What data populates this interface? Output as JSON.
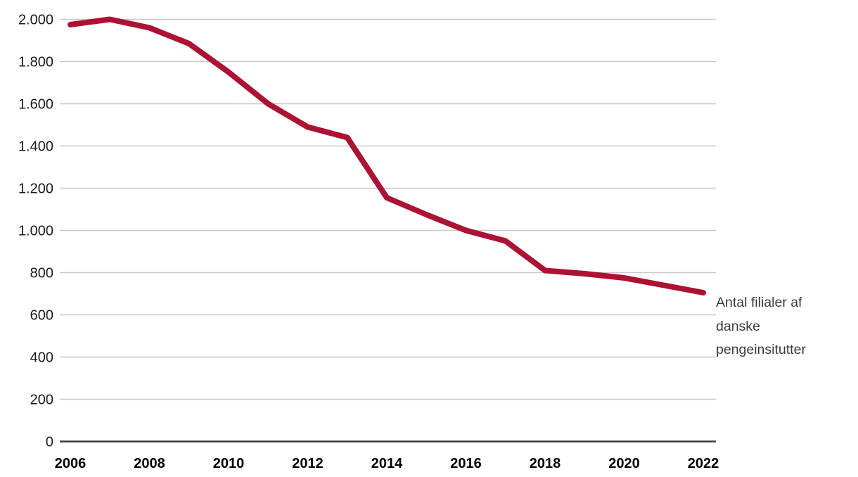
{
  "chart_data": {
    "type": "line",
    "title": "",
    "xlabel": "",
    "ylabel": "",
    "x": [
      2006,
      2007,
      2008,
      2009,
      2010,
      2011,
      2012,
      2013,
      2014,
      2015,
      2016,
      2017,
      2018,
      2019,
      2020,
      2021,
      2022
    ],
    "series": [
      {
        "name": "Antal filialer af danske pengeinsitutter",
        "values": [
          1975,
          2000,
          1960,
          1885,
          1750,
          1600,
          1490,
          1440,
          1155,
          1075,
          1000,
          950,
          810,
          795,
          775,
          740,
          705
        ],
        "color": "#AB1233"
      }
    ],
    "ylim": [
      0,
      2000
    ],
    "yticks": [
      0,
      200,
      400,
      600,
      800,
      1000,
      1200,
      1400,
      1600,
      1800,
      2000
    ],
    "ytick_labels": [
      "0",
      "200",
      "400",
      "600",
      "800",
      "1.000",
      "1.200",
      "1.400",
      "1.600",
      "1.800",
      "2.000"
    ],
    "xticks": [
      2006,
      2008,
      2010,
      2012,
      2014,
      2016,
      2018,
      2020,
      2022
    ],
    "xtick_labels": [
      "2006",
      "2008",
      "2010",
      "2012",
      "2014",
      "2016",
      "2018",
      "2020",
      "2022"
    ],
    "grid": "horizontal",
    "legend_position": "right-of-line-end",
    "annotation_lines": [
      "Antal filialer af",
      "danske",
      "pengeinsitutter"
    ]
  },
  "colors": {
    "line": "#AB1233",
    "gridline": "#c8c8c8",
    "zero_axis": "#3a3a3a",
    "ytick_text": "#1a1a1a",
    "xtick_text": "#000000",
    "annotation_text": "#3b3b3a",
    "background": "#ffffff"
  }
}
